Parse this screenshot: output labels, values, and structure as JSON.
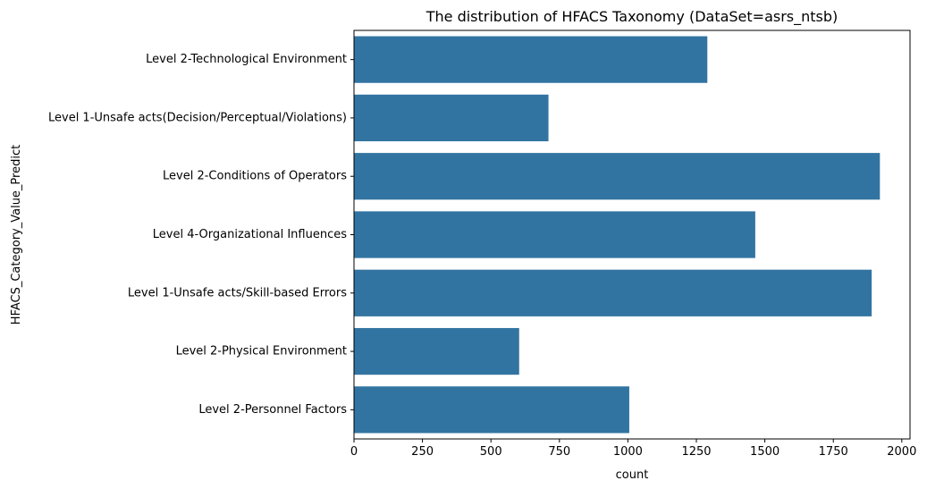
{
  "chart_data": {
    "type": "bar",
    "orientation": "horizontal",
    "title": "The distribution of HFACS Taxonomy (DataSet=asrs_ntsb)",
    "xlabel": "count",
    "ylabel": "HFACS_Category_Value_Predict",
    "xlim": [
      0,
      2030
    ],
    "xticks": [
      0,
      250,
      500,
      750,
      1000,
      1250,
      1500,
      1750,
      2000
    ],
    "xtick_labels": [
      "0",
      "250",
      "500",
      "750",
      "1000",
      "1250",
      "1500",
      "1750",
      "2000"
    ],
    "categories": [
      "Level 2-Technological Environment",
      "Level 1-Unsafe acts(Decision/Perceptual/Violations)",
      "Level 2-Conditions of Operators",
      "Level 4-Organizational Influences",
      "Level 1-Unsafe acts/Skill-based Errors",
      "Level 2-Physical Environment",
      "Level 2-Personnel Factors"
    ],
    "values": [
      1290,
      710,
      1920,
      1465,
      1890,
      603,
      1005
    ],
    "bar_color": "#3274a1",
    "grid": false,
    "legend": "none"
  }
}
